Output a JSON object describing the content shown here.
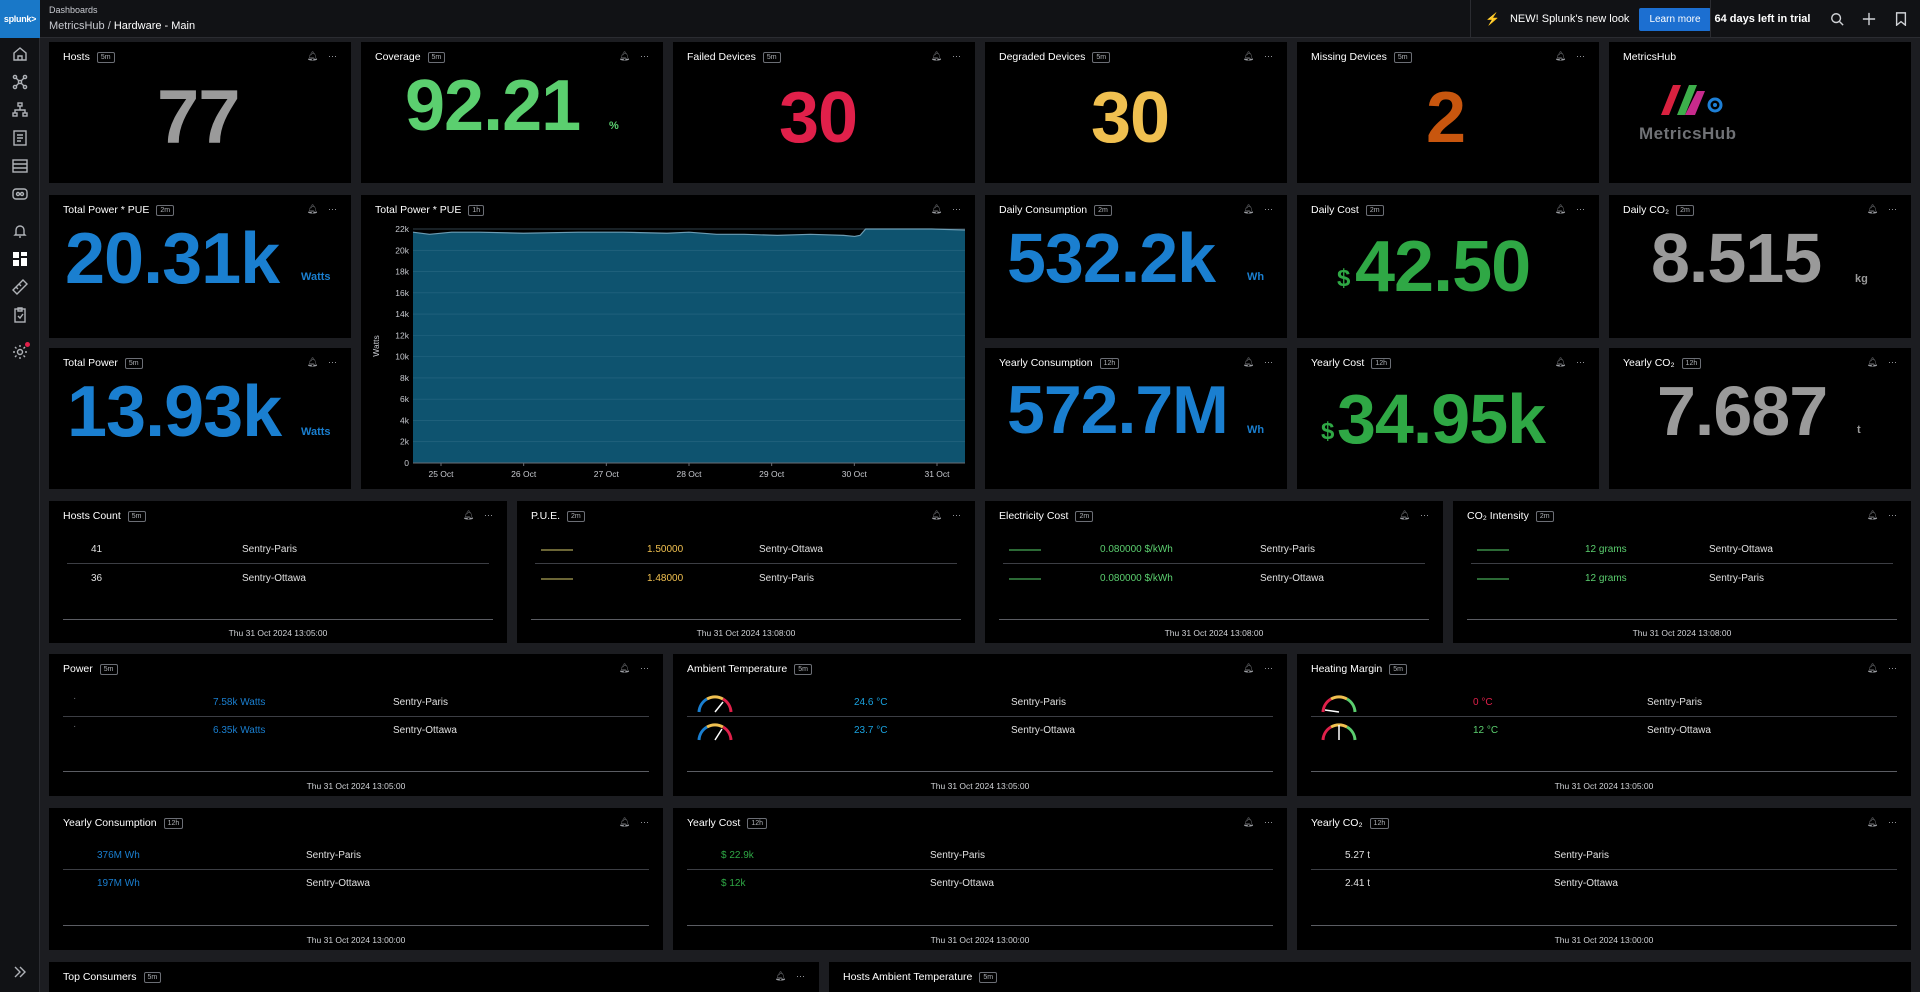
{
  "nav": {
    "logo": "splunk>"
  },
  "topbar": {
    "crumb_small": "Dashboards",
    "crumb_app": "MetricsHub",
    "crumb_sep": "/",
    "crumb_page": "Hardware - Main",
    "promo": "NEW! Splunk's new look",
    "promo_button": "Learn more",
    "trial": "64 days left in trial"
  },
  "tiles": {
    "hosts": {
      "title": "Hosts",
      "badge": "5m",
      "value": "77",
      "color": "#9a9a9a"
    },
    "coverage": {
      "title": "Coverage",
      "badge": "5m",
      "value": "92.21",
      "unit": "%",
      "color": "#5bcf6f"
    },
    "failed": {
      "title": "Failed Devices",
      "badge": "5m",
      "value": "30",
      "color": "#e0204a"
    },
    "degraded": {
      "title": "Degraded Devices",
      "badge": "5m",
      "value": "30",
      "color": "#f0c050"
    },
    "missing": {
      "title": "Missing Devices",
      "badge": "5m",
      "value": "2",
      "color": "#c8560e"
    },
    "metricshub": {
      "title": "MetricsHub",
      "logo_text": "MetricsHub"
    },
    "total_power_pue": {
      "title": "Total Power * PUE",
      "badge": "2m",
      "value": "20.31k",
      "unit": "Watts",
      "color": "#1a7fd0"
    },
    "total_power": {
      "title": "Total Power",
      "badge": "5m",
      "value": "13.93k",
      "unit": "Watts",
      "color": "#1a7fd0"
    },
    "daily_consumption": {
      "title": "Daily Consumption",
      "badge": "2m",
      "value": "532.2k",
      "unit": "Wh",
      "color": "#1a7fd0"
    },
    "daily_cost": {
      "title": "Daily Cost",
      "badge": "2m",
      "value": "42.50",
      "prefix": "$",
      "color": "#2fa845"
    },
    "daily_co2": {
      "title": "Daily CO₂",
      "badge": "2m",
      "value": "8.515",
      "unit": "kg",
      "color": "#9a9a9a"
    },
    "yearly_consumption": {
      "title": "Yearly Consumption",
      "badge": "12h",
      "value": "572.7M",
      "unit": "Wh",
      "color": "#1a7fd0"
    },
    "yearly_cost": {
      "title": "Yearly Cost",
      "badge": "12h",
      "value": "34.95k",
      "prefix": "$",
      "color": "#2fa845"
    },
    "yearly_co2": {
      "title": "Yearly CO₂",
      "badge": "12h",
      "value": "7.687",
      "unit": "t",
      "color": "#9a9a9a"
    }
  },
  "chart_panel": {
    "title": "Total Power * PUE",
    "badge": "1h"
  },
  "chart_data": {
    "type": "area",
    "title": "",
    "ylabel": "Watts",
    "xlabel": "",
    "ylim": [
      0,
      22000
    ],
    "yticks": [
      "0",
      "2k",
      "4k",
      "6k",
      "8k",
      "10k",
      "12k",
      "14k",
      "16k",
      "18k",
      "20k",
      "22k"
    ],
    "xticks": [
      "25 Oct",
      "26 Oct",
      "27 Oct",
      "28 Oct",
      "29 Oct",
      "30 Oct",
      "31 Oct"
    ],
    "x": [
      0,
      0.03,
      0.07,
      0.12,
      0.2,
      0.3,
      0.38,
      0.46,
      0.5,
      0.55,
      0.6,
      0.66,
      0.72,
      0.78,
      0.8,
      0.81,
      0.82,
      0.88,
      0.94,
      1.0
    ],
    "values": [
      21700,
      21500,
      21700,
      21700,
      21600,
      21700,
      21700,
      21600,
      21700,
      21500,
      21500,
      21400,
      21500,
      21400,
      21300,
      21400,
      22000,
      22000,
      22000,
      21900
    ],
    "color": "#0f5775",
    "line_color": "#6c9cb3"
  },
  "hosts_count": {
    "title": "Hosts Count",
    "badge": "5m",
    "rows": [
      {
        "value": "41",
        "site": "Sentry-Paris"
      },
      {
        "value": "36",
        "site": "Sentry-Ottawa"
      }
    ],
    "timestamp": "Thu 31 Oct 2024 13:05:00"
  },
  "pue": {
    "title": "P.U.E.",
    "badge": "2m",
    "rows": [
      {
        "value": "1.50000",
        "site": "Sentry-Ottawa"
      },
      {
        "value": "1.48000",
        "site": "Sentry-Paris"
      }
    ],
    "timestamp": "Thu 31 Oct 2024 13:08:00"
  },
  "electricity_cost": {
    "title": "Electricity Cost",
    "badge": "2m",
    "rows": [
      {
        "value": "0.080000 $/kWh",
        "site": "Sentry-Paris"
      },
      {
        "value": "0.080000 $/kWh",
        "site": "Sentry-Ottawa"
      }
    ],
    "timestamp": "Thu 31 Oct 2024 13:08:00"
  },
  "co2_intensity": {
    "title": "CO₂ Intensity",
    "badge": "2m",
    "rows": [
      {
        "value": "12 grams",
        "site": "Sentry-Ottawa"
      },
      {
        "value": "12 grams",
        "site": "Sentry-Paris"
      }
    ],
    "timestamp": "Thu 31 Oct 2024 13:08:00"
  },
  "power": {
    "title": "Power",
    "badge": "5m",
    "rows": [
      {
        "value": "7.58k Watts",
        "site": "Sentry-Paris"
      },
      {
        "value": "6.35k Watts",
        "site": "Sentry-Ottawa"
      }
    ],
    "timestamp": "Thu 31 Oct 2024 13:05:00"
  },
  "ambient_temp": {
    "title": "Ambient Temperature",
    "badge": "5m",
    "rows": [
      {
        "value": "24.6 °C",
        "site": "Sentry-Paris"
      },
      {
        "value": "23.7 °C",
        "site": "Sentry-Ottawa"
      }
    ],
    "timestamp": "Thu 31 Oct 2024 13:05:00"
  },
  "heating_margin": {
    "title": "Heating Margin",
    "badge": "5m",
    "rows": [
      {
        "value": "0 °C",
        "site": "Sentry-Paris"
      },
      {
        "value": "12 °C",
        "site": "Sentry-Ottawa"
      }
    ],
    "timestamp": "Thu 31 Oct 2024 13:05:00"
  },
  "yearly_consumption_tbl": {
    "title": "Yearly Consumption",
    "badge": "12h",
    "rows": [
      {
        "value": "376M Wh",
        "site": "Sentry-Paris"
      },
      {
        "value": "197M Wh",
        "site": "Sentry-Ottawa"
      }
    ],
    "timestamp": "Thu 31 Oct 2024 13:00:00"
  },
  "yearly_cost_tbl": {
    "title": "Yearly Cost",
    "badge": "12h",
    "rows": [
      {
        "value": "$ 22.9k",
        "site": "Sentry-Paris"
      },
      {
        "value": "$ 12k",
        "site": "Sentry-Ottawa"
      }
    ],
    "timestamp": "Thu 31 Oct 2024 13:00:00"
  },
  "yearly_co2_tbl": {
    "title": "Yearly CO₂",
    "badge": "12h",
    "rows": [
      {
        "value": "5.27 t",
        "site": "Sentry-Paris"
      },
      {
        "value": "2.41 t",
        "site": "Sentry-Ottawa"
      }
    ],
    "timestamp": "Thu 31 Oct 2024 13:00:00"
  },
  "top_consumers": {
    "title": "Top Consumers",
    "badge": "5m"
  },
  "hosts_ambient": {
    "title": "Hosts Ambient Temperature",
    "badge": "5m"
  },
  "icons": {
    "bell": "bell-icon",
    "more": "more-icon"
  }
}
